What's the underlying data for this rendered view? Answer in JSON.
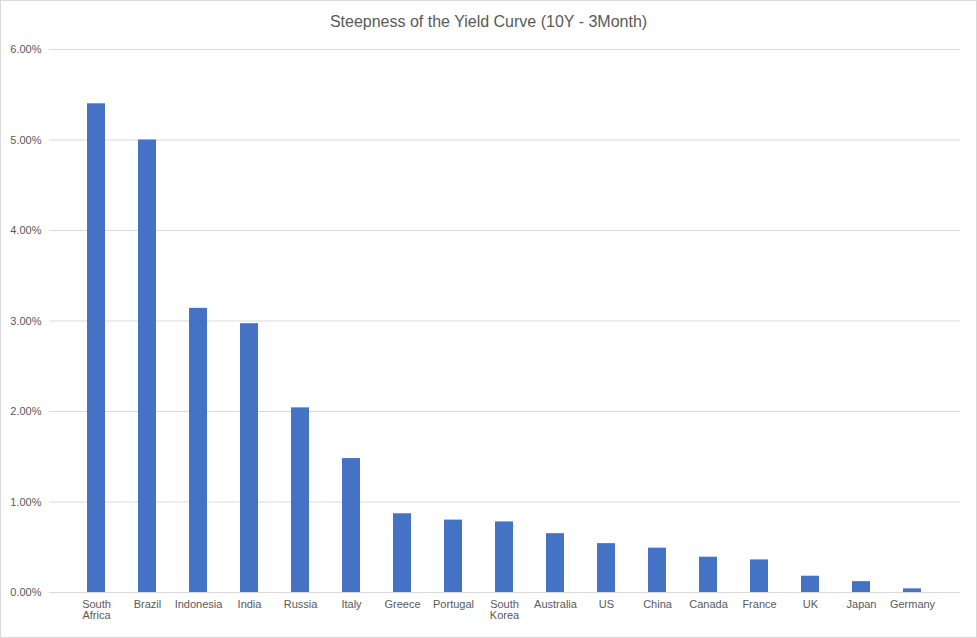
{
  "chart_data": {
    "type": "bar",
    "title": "Steepness of the Yield Curve (10Y - 3Month)",
    "categories": [
      "South Africa",
      "Brazil",
      "Indonesia",
      "India",
      "Russia",
      "Italy",
      "Greece",
      "Portugal",
      "South Korea",
      "Australia",
      "US",
      "China",
      "Canada",
      "France",
      "UK",
      "Japan",
      "Germany"
    ],
    "values": [
      5.4,
      5.0,
      3.14,
      2.97,
      2.04,
      1.48,
      0.87,
      0.8,
      0.78,
      0.65,
      0.54,
      0.49,
      0.39,
      0.36,
      0.18,
      0.12,
      0.04
    ],
    "color": "#4472c4",
    "ylim": [
      0,
      6
    ],
    "yticks": [
      {
        "value": 0,
        "label": "0.00%"
      },
      {
        "value": 1,
        "label": "1.00%"
      },
      {
        "value": 2,
        "label": "2.00%"
      },
      {
        "value": 3,
        "label": "3.00%"
      },
      {
        "value": 4,
        "label": "4.00%"
      },
      {
        "value": 5,
        "label": "5.00%"
      },
      {
        "value": 6,
        "label": "6.00%"
      }
    ],
    "grid": true
  }
}
